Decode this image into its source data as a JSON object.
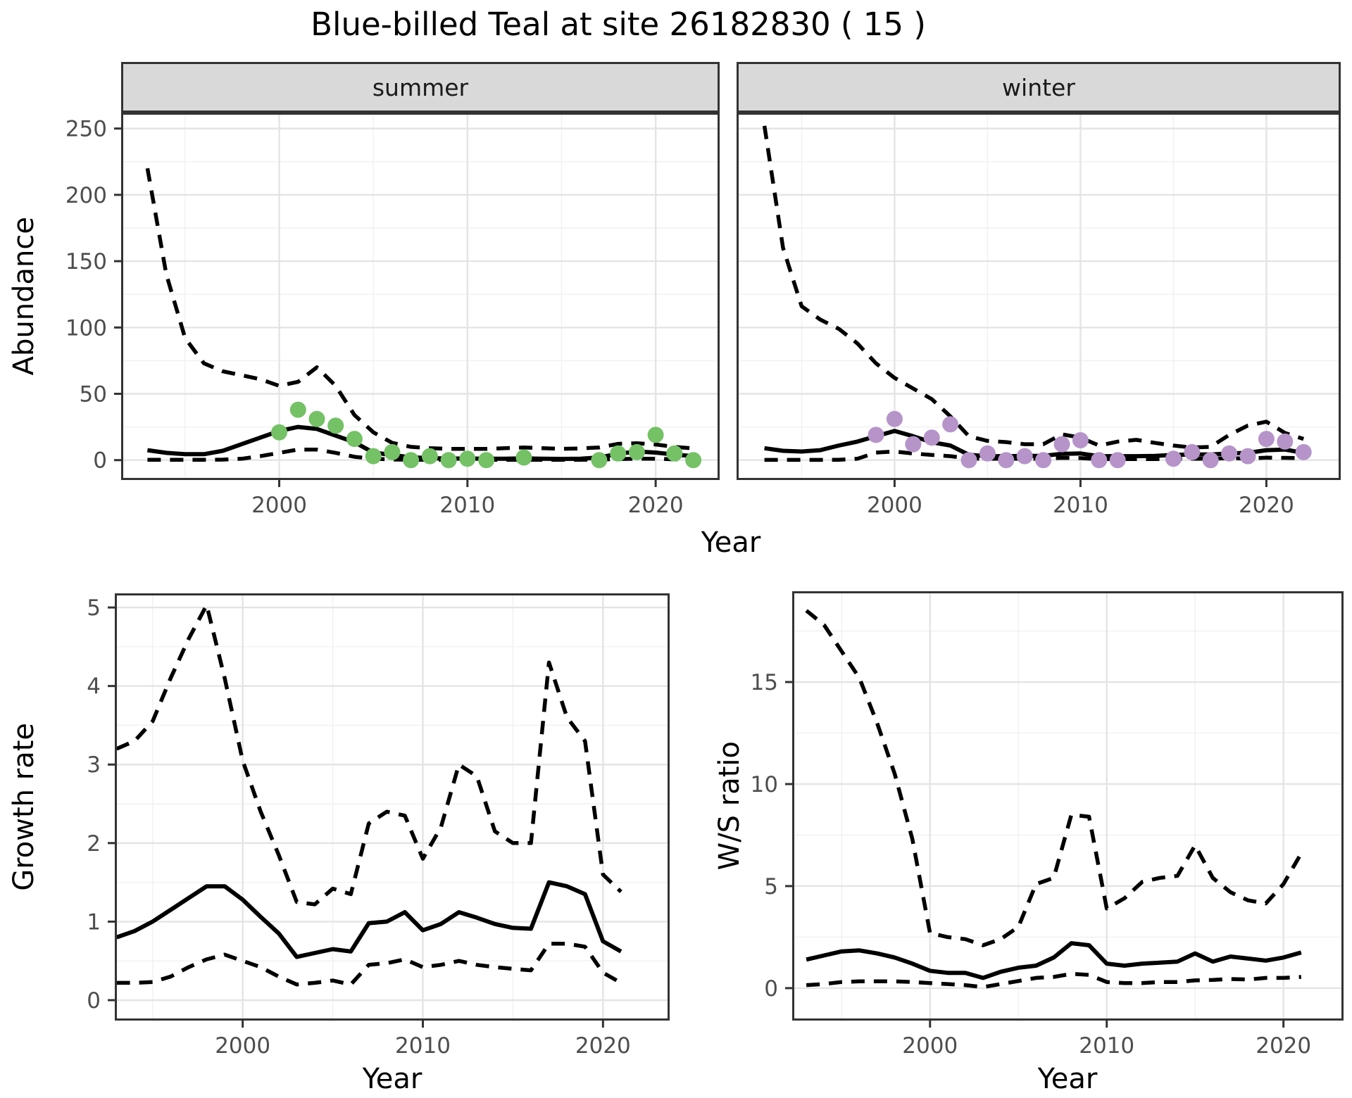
{
  "title": "Blue-billed Teal at site 26182830 ( 15 )",
  "axes": {
    "abundance_label": "Abundance",
    "growth_label": "Growth rate",
    "ws_label": "W/S ratio",
    "year_label": "Year"
  },
  "colors": {
    "summer_point": "#74c166",
    "winter_point": "#b694ca",
    "line": "#000000",
    "panel_border": "#333333",
    "strip_bg": "#d9d9d9",
    "grid_major": "#e4e4e4",
    "grid_minor": "#f2f2f2",
    "tick_text": "#4d4d4d"
  },
  "chart_data": [
    {
      "id": "abundance_summer",
      "type": "line",
      "facet_label": "summer",
      "ylabel": "Abundance",
      "xlabel": "Year",
      "x": [
        1993,
        1994,
        1995,
        1996,
        1997,
        1998,
        1999,
        2000,
        2001,
        2002,
        2003,
        2004,
        2005,
        2006,
        2007,
        2008,
        2009,
        2010,
        2011,
        2012,
        2013,
        2014,
        2015,
        2016,
        2017,
        2018,
        2019,
        2020,
        2021,
        2022
      ],
      "series": [
        {
          "name": "mean",
          "style": "solid",
          "values": [
            7.5,
            5.5,
            4.5,
            4.5,
            7,
            12,
            17,
            22,
            25,
            23.5,
            18.5,
            13.5,
            5.7,
            3.9,
            2.1,
            1.5,
            1.2,
            1.2,
            1,
            1,
            1.3,
            1,
            0.9,
            1,
            2,
            4.8,
            6.5,
            5.7,
            4.2,
            3
          ]
        },
        {
          "name": "upper_ci",
          "style": "dashed",
          "values": [
            220,
            140,
            92,
            73,
            67,
            64,
            61,
            56,
            59,
            70,
            56,
            34,
            21,
            13,
            10,
            9,
            8.5,
            8.5,
            8.5,
            9,
            9.5,
            9,
            8.5,
            8.8,
            9.5,
            12.3,
            12.7,
            11.8,
            10,
            8.8
          ]
        },
        {
          "name": "lower_ci",
          "style": "dashed",
          "values": [
            0.3,
            0.3,
            0.3,
            0.3,
            0.4,
            1,
            3,
            5.5,
            8,
            8,
            5.5,
            2.5,
            1,
            0.5,
            0.3,
            0.3,
            0.3,
            0.3,
            0.3,
            0.3,
            0.3,
            0.3,
            0.3,
            0.3,
            0.4,
            0.8,
            1,
            1,
            0.6,
            0.3
          ]
        }
      ],
      "points": {
        "color": "#74c166",
        "data": [
          [
            2000,
            21
          ],
          [
            2001,
            38
          ],
          [
            2002,
            31
          ],
          [
            2003,
            26
          ],
          [
            2004,
            16
          ],
          [
            2005,
            3
          ],
          [
            2006,
            6
          ],
          [
            2007,
            0
          ],
          [
            2008,
            3
          ],
          [
            2009,
            0
          ],
          [
            2010,
            1
          ],
          [
            2011,
            0
          ],
          [
            2013,
            2
          ],
          [
            2017,
            0
          ],
          [
            2018,
            5
          ],
          [
            2019,
            6
          ],
          [
            2020,
            19
          ],
          [
            2021,
            5
          ],
          [
            2022,
            0
          ]
        ]
      },
      "xlim": [
        1991.6,
        2023.4
      ],
      "ylim": [
        -15,
        262
      ],
      "xticks": [
        2000,
        2010,
        2020
      ],
      "yticks": [
        0,
        50,
        100,
        150,
        200,
        250
      ],
      "x_minor": [
        1995,
        2005,
        2015
      ],
      "y_minor": [
        25,
        75,
        125,
        175,
        225
      ],
      "show_y_labels": true
    },
    {
      "id": "abundance_winter",
      "type": "line",
      "facet_label": "winter",
      "ylabel": "Abundance",
      "xlabel": "Year",
      "x": [
        1993,
        1994,
        1995,
        1996,
        1997,
        1998,
        1999,
        2000,
        2001,
        2002,
        2003,
        2004,
        2005,
        2006,
        2007,
        2008,
        2009,
        2010,
        2011,
        2012,
        2013,
        2014,
        2015,
        2016,
        2017,
        2018,
        2019,
        2020,
        2021,
        2022
      ],
      "series": [
        {
          "name": "mean",
          "style": "solid",
          "values": [
            9,
            7,
            6.5,
            7.5,
            11,
            14,
            18,
            22,
            18,
            13.5,
            11,
            4,
            3,
            3,
            3.2,
            3.2,
            4.8,
            5,
            3,
            3,
            3,
            3.2,
            3.9,
            4.3,
            4.2,
            5,
            5.5,
            7.5,
            8,
            5.5
          ]
        },
        {
          "name": "upper_ci",
          "style": "dashed",
          "values": [
            252,
            160,
            116,
            106,
            99,
            88,
            73,
            62,
            54,
            46,
            33,
            18,
            14.5,
            13.6,
            12,
            12,
            19.5,
            17,
            11,
            14,
            15.3,
            13,
            11,
            9.5,
            10,
            19,
            26,
            29,
            20.5,
            16
          ]
        },
        {
          "name": "lower_ci",
          "style": "dashed",
          "values": [
            0.2,
            0.2,
            0.2,
            0.2,
            0.3,
            1,
            5.7,
            6.5,
            5,
            3.9,
            3,
            1.2,
            1,
            1,
            1,
            1,
            1.7,
            1.5,
            0.8,
            0.8,
            0.8,
            0.8,
            1,
            1,
            1,
            1.5,
            1.2,
            1.8,
            1.7,
            1.5
          ]
        }
      ],
      "points": {
        "color": "#b694ca",
        "data": [
          [
            1999,
            19
          ],
          [
            2000,
            31
          ],
          [
            2001,
            12
          ],
          [
            2002,
            17
          ],
          [
            2003,
            27
          ],
          [
            2004,
            0
          ],
          [
            2005,
            5
          ],
          [
            2006,
            0
          ],
          [
            2007,
            3
          ],
          [
            2008,
            0
          ],
          [
            2009,
            12
          ],
          [
            2010,
            15
          ],
          [
            2011,
            0
          ],
          [
            2012,
            0
          ],
          [
            2015,
            1
          ],
          [
            2016,
            6
          ],
          [
            2017,
            0
          ],
          [
            2018,
            5
          ],
          [
            2019,
            3
          ],
          [
            2020,
            16
          ],
          [
            2021,
            14
          ],
          [
            2022,
            6
          ]
        ]
      },
      "xlim": [
        1991.5,
        2024.0
      ],
      "ylim": [
        -15,
        262
      ],
      "xticks": [
        2000,
        2010,
        2020
      ],
      "yticks": [
        0,
        50,
        100,
        150,
        200,
        250
      ],
      "x_minor": [
        1995,
        2005,
        2015
      ],
      "y_minor": [
        25,
        75,
        125,
        175,
        225
      ],
      "show_y_labels": false
    },
    {
      "id": "growth_rate",
      "type": "line",
      "ylabel": "Growth rate",
      "xlabel": "Year",
      "x": [
        1993,
        1994,
        1995,
        1996,
        1997,
        1998,
        1999,
        2000,
        2001,
        2002,
        2003,
        2004,
        2005,
        2006,
        2007,
        2008,
        2009,
        2010,
        2011,
        2012,
        2013,
        2014,
        2015,
        2016,
        2017,
        2018,
        2019,
        2020,
        2021
      ],
      "series": [
        {
          "name": "mean",
          "style": "solid",
          "values": [
            0.8,
            0.88,
            1.0,
            1.15,
            1.3,
            1.45,
            1.45,
            1.28,
            1.06,
            0.85,
            0.55,
            0.6,
            0.65,
            0.62,
            0.98,
            1.0,
            1.12,
            0.89,
            0.97,
            1.12,
            1.05,
            0.97,
            0.92,
            0.91,
            1.5,
            1.45,
            1.35,
            0.75,
            0.62
          ]
        },
        {
          "name": "upper_ci",
          "style": "dashed",
          "values": [
            3.2,
            3.3,
            3.55,
            4.1,
            4.6,
            5.03,
            4.1,
            3.05,
            2.4,
            1.85,
            1.25,
            1.22,
            1.42,
            1.35,
            2.25,
            2.4,
            2.35,
            1.8,
            2.2,
            3.0,
            2.85,
            2.15,
            2.0,
            2.0,
            4.3,
            3.6,
            3.3,
            1.6,
            1.38
          ]
        },
        {
          "name": "lower_ci",
          "style": "dashed",
          "values": [
            0.22,
            0.22,
            0.23,
            0.3,
            0.42,
            0.52,
            0.58,
            0.5,
            0.42,
            0.3,
            0.2,
            0.22,
            0.25,
            0.2,
            0.45,
            0.47,
            0.52,
            0.42,
            0.45,
            0.5,
            0.45,
            0.42,
            0.4,
            0.38,
            0.72,
            0.72,
            0.68,
            0.35,
            0.22
          ]
        }
      ],
      "xlim": [
        1992.9,
        2023.7
      ],
      "ylim": [
        -0.26,
        5.18
      ],
      "xticks": [
        2000,
        2010,
        2020
      ],
      "yticks": [
        0,
        1,
        2,
        3,
        4,
        5
      ],
      "x_minor": [
        1995,
        2005,
        2015
      ],
      "y_minor": [
        0.5,
        1.5,
        2.5,
        3.5,
        4.5
      ],
      "show_y_labels": true
    },
    {
      "id": "ws_ratio",
      "type": "line",
      "ylabel": "W/S ratio",
      "xlabel": "Year",
      "x": [
        1993,
        1994,
        1995,
        1996,
        1997,
        1998,
        1999,
        2000,
        2001,
        2002,
        2003,
        2004,
        2005,
        2006,
        2007,
        2008,
        2009,
        2010,
        2011,
        2012,
        2013,
        2014,
        2015,
        2016,
        2017,
        2018,
        2019,
        2020,
        2021
      ],
      "series": [
        {
          "name": "mean",
          "style": "solid",
          "values": [
            1.4,
            1.6,
            1.8,
            1.85,
            1.7,
            1.5,
            1.2,
            0.85,
            0.75,
            0.75,
            0.5,
            0.8,
            1.0,
            1.1,
            1.5,
            2.2,
            2.1,
            1.2,
            1.1,
            1.2,
            1.25,
            1.3,
            1.7,
            1.3,
            1.55,
            1.45,
            1.35,
            1.5,
            1.75
          ]
        },
        {
          "name": "upper_ci",
          "style": "dashed",
          "values": [
            18.5,
            17.8,
            16.5,
            15.2,
            13.0,
            10.5,
            7.3,
            2.7,
            2.5,
            2.4,
            2.1,
            2.4,
            3.0,
            5.1,
            5.4,
            8.5,
            8.4,
            3.9,
            4.4,
            5.2,
            5.4,
            5.5,
            7.0,
            5.4,
            4.7,
            4.3,
            4.15,
            5.1,
            6.6
          ]
        },
        {
          "name": "lower_ci",
          "style": "dashed",
          "values": [
            0.15,
            0.2,
            0.3,
            0.33,
            0.33,
            0.33,
            0.3,
            0.25,
            0.2,
            0.15,
            0.05,
            0.2,
            0.35,
            0.5,
            0.55,
            0.7,
            0.65,
            0.3,
            0.25,
            0.25,
            0.3,
            0.3,
            0.38,
            0.4,
            0.45,
            0.42,
            0.5,
            0.5,
            0.55
          ]
        }
      ],
      "xlim": [
        1992.2,
        2023.4
      ],
      "ylim": [
        -1.59,
        19.45
      ],
      "xticks": [
        2000,
        2010,
        2020
      ],
      "yticks": [
        0,
        5,
        10,
        15
      ],
      "x_minor": [
        1995,
        2005,
        2015
      ],
      "y_minor": [
        2.5,
        7.5,
        12.5,
        17.5
      ],
      "show_y_labels": true
    }
  ]
}
